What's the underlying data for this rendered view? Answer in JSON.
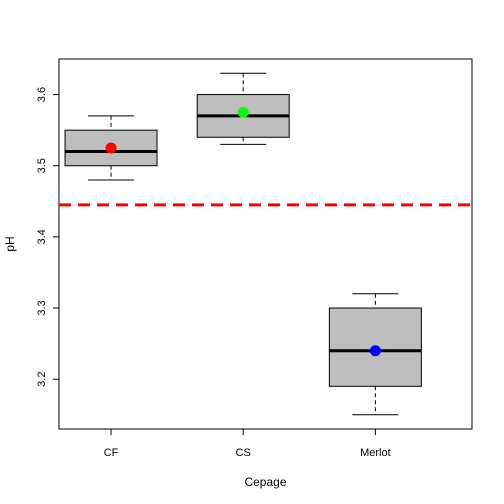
{
  "chart_data": {
    "type": "box",
    "title": "",
    "xlabel": "Cepage",
    "ylabel": "pH",
    "categories": [
      "CF",
      "CS",
      "Merlot"
    ],
    "ylim": [
      3.13,
      3.65
    ],
    "yticks": [
      3.2,
      3.3,
      3.4,
      3.5,
      3.6
    ],
    "ytick_labels": [
      "3.2",
      "3.3",
      "3.4",
      "3.5",
      "3.6"
    ],
    "boxes": [
      {
        "category": "CF",
        "min": 3.48,
        "q1": 3.5,
        "median": 3.52,
        "q3": 3.55,
        "max": 3.57,
        "mean": 3.525
      },
      {
        "category": "CS",
        "min": 3.53,
        "q1": 3.54,
        "median": 3.57,
        "q3": 3.6,
        "max": 3.63,
        "mean": 3.575
      },
      {
        "category": "Merlot",
        "min": 3.15,
        "q1": 3.19,
        "median": 3.24,
        "q3": 3.3,
        "max": 3.32,
        "mean": 3.24
      }
    ],
    "mean_colors": [
      "#ff0000",
      "#00ff00",
      "#0000ff"
    ],
    "box_fill": "#bebebe",
    "reference_line": {
      "y": 3.445,
      "color": "#ff0000",
      "style": "dashed"
    },
    "grid": false,
    "legend": "none"
  }
}
